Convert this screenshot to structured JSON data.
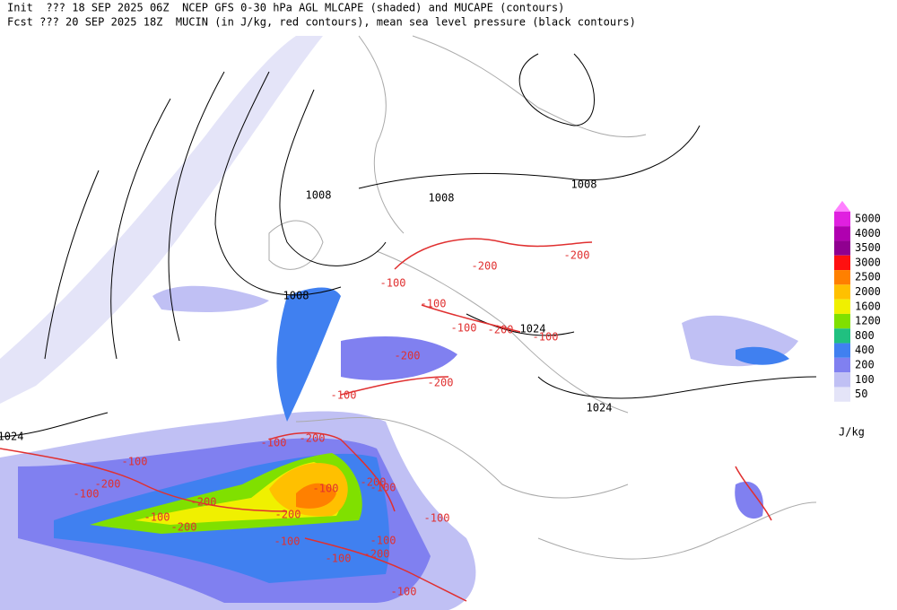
{
  "header": {
    "line1": "Init  ??? 18 SEP 2025 06Z  NCEP GFS 0-30 hPa AGL MLCAPE (shaded) and MUCAPE (contours)",
    "line2": "Fcst ??? 20 SEP 2025 18Z  MUCIN (in J/kg, red contours), mean sea level pressure (black contours)"
  },
  "legend": {
    "unit": "J/kg",
    "items": [
      {
        "label": 5000,
        "color": "#e020e0"
      },
      {
        "label": 4000,
        "color": "#b000b0"
      },
      {
        "label": 3500,
        "color": "#900090"
      },
      {
        "label": 3000,
        "color": "#ff1010"
      },
      {
        "label": 2500,
        "color": "#ff8000"
      },
      {
        "label": 2000,
        "color": "#ffc000"
      },
      {
        "label": 1600,
        "color": "#f0f000"
      },
      {
        "label": 1200,
        "color": "#80e000"
      },
      {
        "label": 800,
        "color": "#20c080"
      },
      {
        "label": 400,
        "color": "#4080f0"
      },
      {
        "label": 200,
        "color": "#8080f0"
      },
      {
        "label": 100,
        "color": "#c0c0f4"
      },
      {
        "label": 50,
        "color": "#e4e4f8"
      }
    ]
  },
  "contour_labels": {
    "pressure": [
      "1008",
      "1008",
      "1008",
      "1008",
      "1024",
      "1024",
      "1024"
    ],
    "cin": [
      "-200",
      "-200",
      "-100",
      "-100",
      "-100",
      "-200",
      "-100",
      "-200",
      "-100",
      "-200",
      "-200",
      "-100",
      "-100",
      "-200",
      "-100",
      "-200",
      "-100",
      "-200",
      "-200",
      "-100",
      "-200",
      "-100",
      "-100",
      "-100",
      "-100",
      "-200",
      "-100",
      "-100"
    ]
  }
}
